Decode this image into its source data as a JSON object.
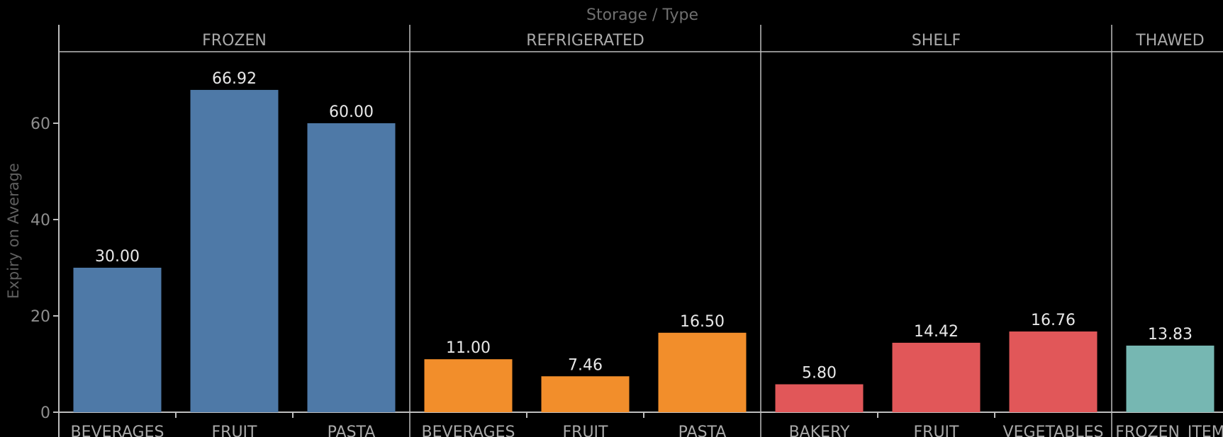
{
  "chart_data": {
    "type": "bar",
    "title": "Storage / Type",
    "ylabel": "Expiry on Average",
    "xlabel": "",
    "ylim": [
      0,
      80
    ],
    "yticks": [
      0,
      20,
      40,
      60
    ],
    "grid": false,
    "groups": [
      {
        "name": "FROZEN",
        "color": "#4e79a7",
        "bars": [
          {
            "category": "BEVERAGES",
            "value": 30.0,
            "label": "30.00"
          },
          {
            "category": "FRUIT",
            "value": 66.92,
            "label": "66.92"
          },
          {
            "category": "PASTA",
            "value": 60.0,
            "label": "60.00"
          }
        ]
      },
      {
        "name": "REFRIGERATED",
        "color": "#f28e2b",
        "bars": [
          {
            "category": "BEVERAGES",
            "value": 11.0,
            "label": "11.00"
          },
          {
            "category": "FRUIT",
            "value": 7.46,
            "label": "7.46"
          },
          {
            "category": "PASTA",
            "value": 16.5,
            "label": "16.50"
          }
        ]
      },
      {
        "name": "SHELF",
        "color": "#e15759",
        "bars": [
          {
            "category": "BAKERY",
            "value": 5.8,
            "label": "5.80"
          },
          {
            "category": "FRUIT",
            "value": 14.42,
            "label": "14.42"
          },
          {
            "category": "VEGETABLES",
            "value": 16.76,
            "label": "16.76"
          }
        ]
      },
      {
        "name": "THAWED",
        "color": "#76b7b2",
        "bars": [
          {
            "category": "FROZEN_ITEM",
            "value": 13.83,
            "label": "13.83"
          }
        ]
      }
    ]
  }
}
